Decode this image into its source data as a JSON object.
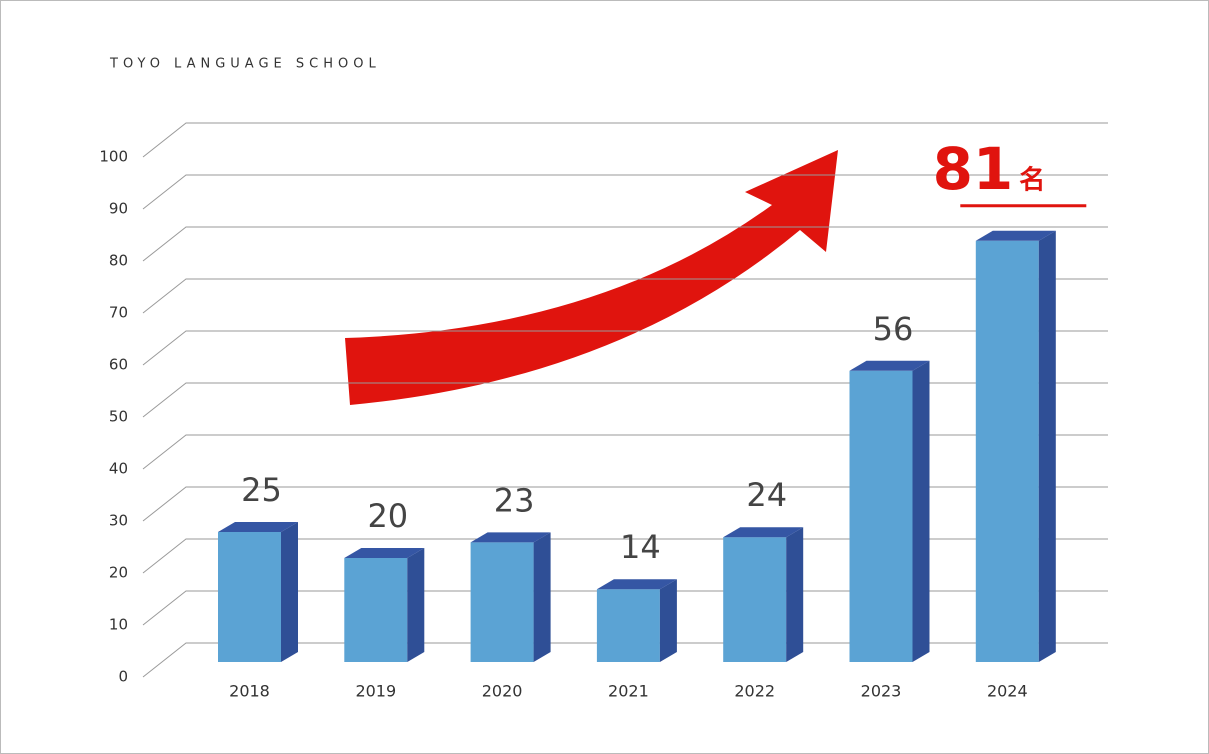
{
  "chart_data": {
    "type": "bar3d",
    "title": "TOYO LANGUAGE SCHOOL",
    "categories": [
      "2018",
      "2019",
      "2020",
      "2021",
      "2022",
      "2023",
      "2024"
    ],
    "values": [
      25,
      20,
      23,
      14,
      24,
      56,
      81
    ],
    "highlight_unit": "名",
    "color": "#5ba3d4",
    "ylim": [
      0,
      100
    ],
    "yticks": [
      0,
      10,
      20,
      30,
      40,
      50,
      60,
      70,
      80,
      90,
      100
    ],
    "grid": true
  }
}
